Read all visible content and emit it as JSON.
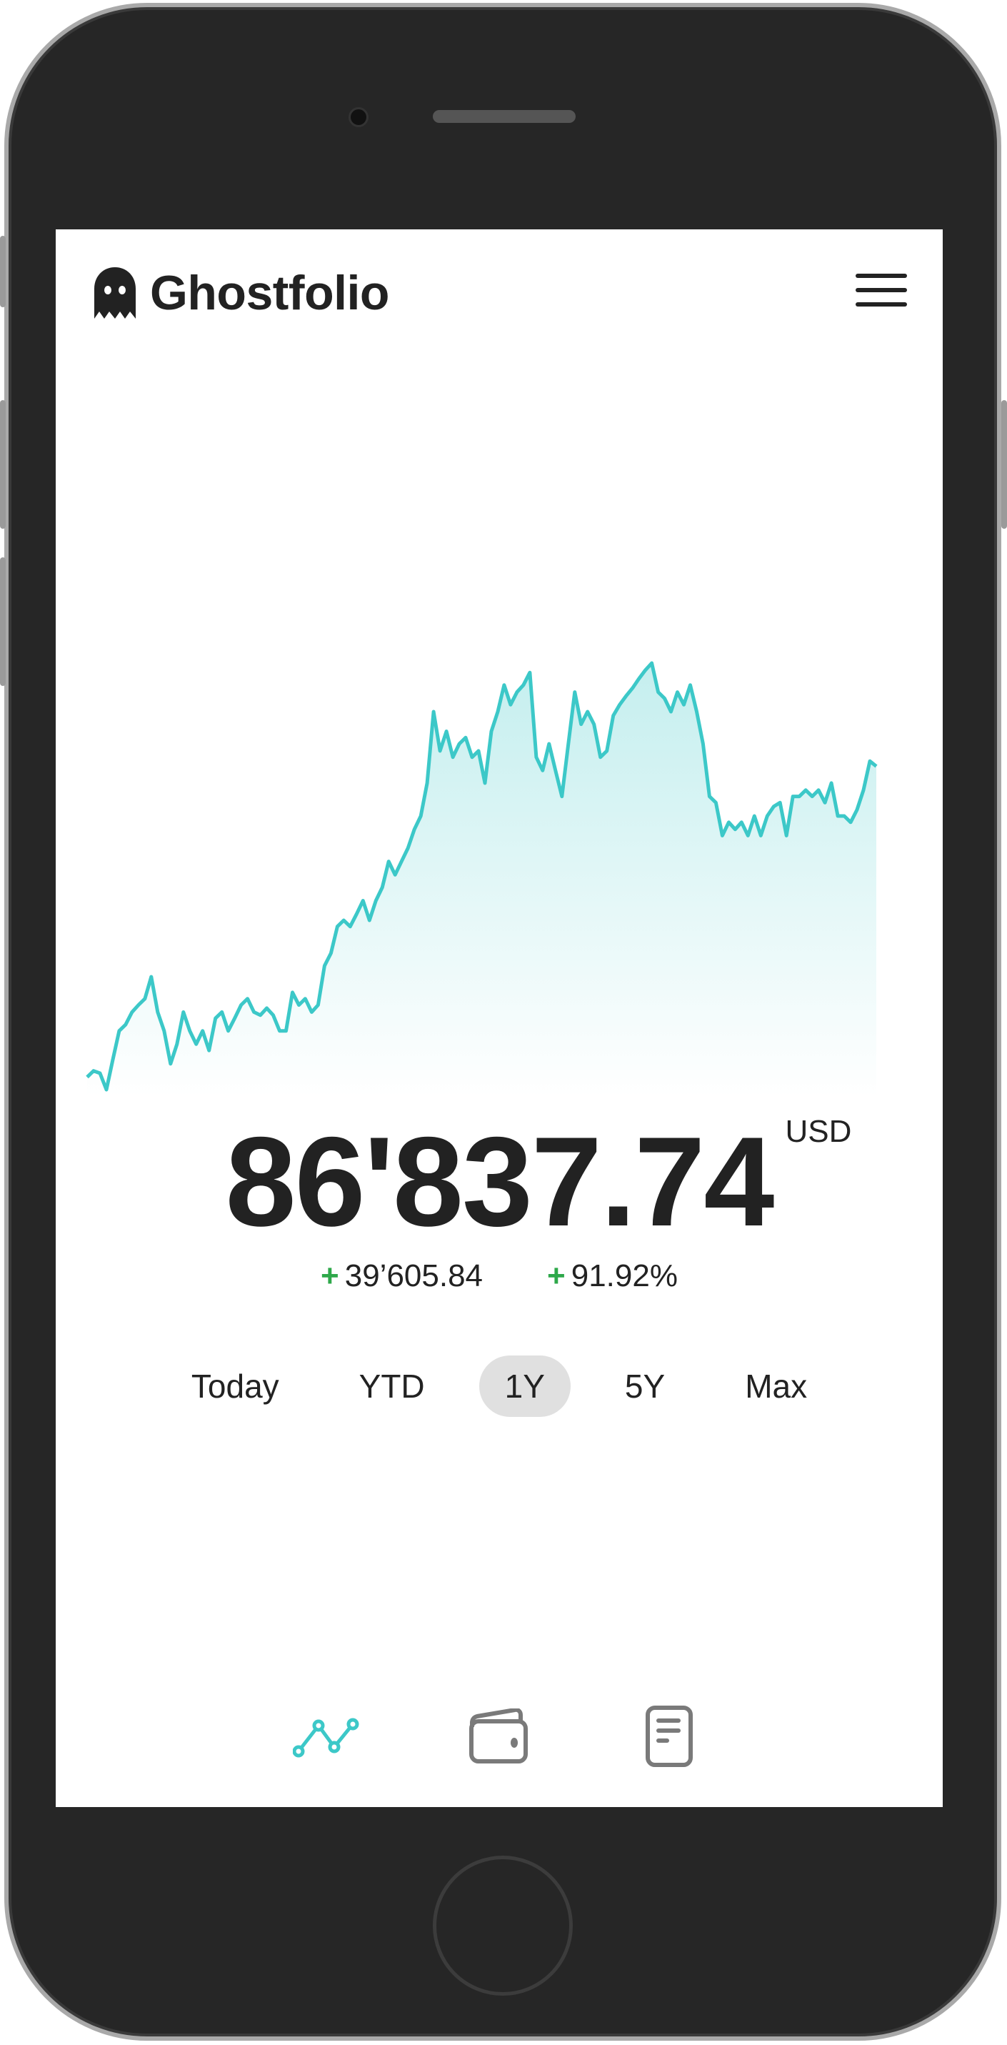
{
  "app": {
    "title": "Ghostfolio",
    "logo_icon": "ghost-icon",
    "menu_icon": "hamburger-menu-icon"
  },
  "portfolio": {
    "value": "86'837.74",
    "currency": "USD",
    "change_absolute": "39’605.84",
    "change_percent": "91.92%",
    "change_sign": "+",
    "positive_color": "#2ea84a"
  },
  "ranges": [
    {
      "label": "Today",
      "active": false
    },
    {
      "label": "YTD",
      "active": false
    },
    {
      "label": "1Y",
      "active": true
    },
    {
      "label": "5Y",
      "active": false
    },
    {
      "label": "Max",
      "active": false
    }
  ],
  "nav": [
    {
      "icon": "analysis-chart-icon",
      "active": true
    },
    {
      "icon": "wallet-icon",
      "active": false
    },
    {
      "icon": "document-icon",
      "active": false
    }
  ],
  "chart_data": {
    "type": "area",
    "line_color": "#3cc8c8",
    "values": [
      47200,
      48000,
      47700,
      45600,
      49400,
      53100,
      53900,
      55500,
      56400,
      57200,
      60000,
      55500,
      53100,
      48900,
      51400,
      55500,
      53100,
      51400,
      53100,
      50600,
      54700,
      55500,
      53100,
      54700,
      56400,
      57200,
      55500,
      55100,
      56000,
      55100,
      53100,
      53100,
      58000,
      56400,
      57200,
      55500,
      56400,
      61400,
      63000,
      66400,
      67200,
      66400,
      68000,
      69700,
      67200,
      69700,
      71400,
      74700,
      73000,
      74700,
      76400,
      78800,
      80500,
      84700,
      93800,
      88800,
      91300,
      88000,
      89700,
      90500,
      88000,
      88800,
      84700,
      91300,
      93800,
      97200,
      94700,
      96300,
      97200,
      98800,
      88000,
      86300,
      89700,
      86300,
      83000,
      89700,
      96300,
      92200,
      93800,
      92200,
      88000,
      88800,
      93300,
      94700,
      95800,
      96800,
      98000,
      99100,
      100000,
      96300,
      95500,
      93800,
      96300,
      94700,
      97200,
      93800,
      89700,
      83000,
      82200,
      78000,
      79700,
      78800,
      79700,
      78000,
      80500,
      78000,
      80500,
      81700,
      82200,
      78000,
      83000,
      83000,
      83800,
      83000,
      83800,
      82200,
      84700,
      80500,
      80500,
      79700,
      81300,
      83800,
      87500,
      86838
    ]
  }
}
